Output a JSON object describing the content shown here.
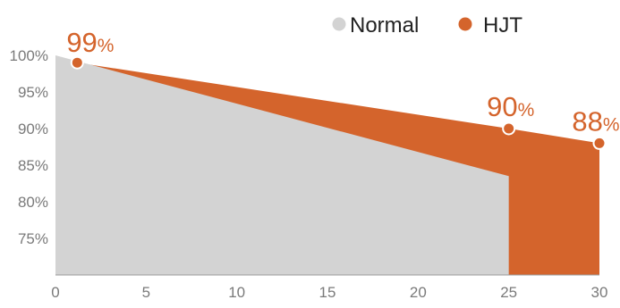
{
  "chart_data": {
    "type": "area",
    "x_ticks": [
      "0",
      "5",
      "10",
      "15",
      "20",
      "25",
      "30"
    ],
    "y_ticks": [
      "100%",
      "95%",
      "90%",
      "85%",
      "80%",
      "75%"
    ],
    "xlim": [
      0,
      30
    ],
    "ylim": [
      70,
      100
    ],
    "grid": false,
    "legend": "top-right",
    "series": [
      {
        "name": "Normal",
        "color": "#d3d3d3",
        "x": [
          0,
          25
        ],
        "y": [
          100,
          83.5
        ]
      },
      {
        "name": "HJT",
        "color": "#d4642c",
        "x": [
          1.2,
          25,
          30
        ],
        "y": [
          99,
          90,
          88
        ]
      }
    ],
    "annotations": [
      {
        "x": 1.2,
        "y": 99,
        "value": "99",
        "unit": "%"
      },
      {
        "x": 25,
        "y": 90,
        "value": "90",
        "unit": "%"
      },
      {
        "x": 30,
        "y": 88,
        "value": "88",
        "unit": "%"
      }
    ]
  }
}
